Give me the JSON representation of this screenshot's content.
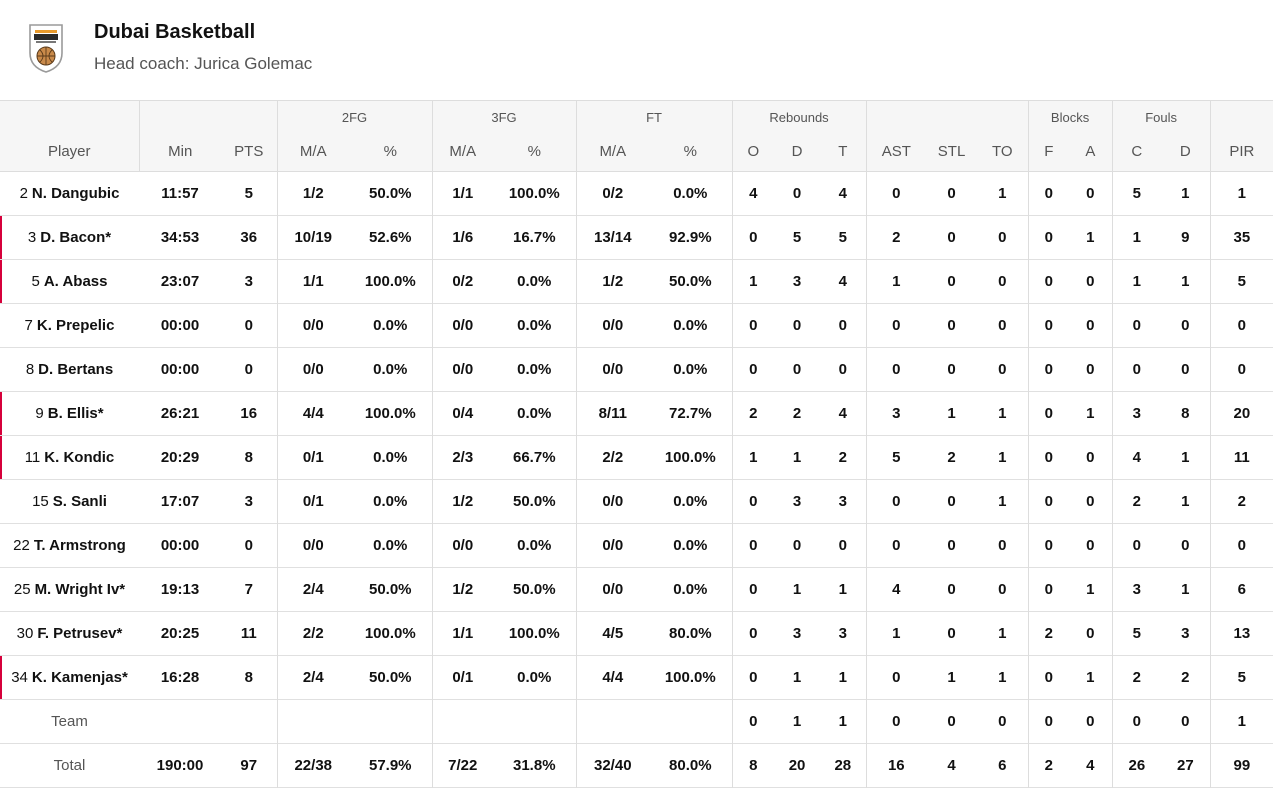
{
  "team": {
    "name": "Dubai Basketball",
    "coach": "Head coach: Jurica Golemac",
    "logo_icon": "dubai-basketball-logo-icon",
    "accent_color": "#d6003b"
  },
  "headers": {
    "groups": {
      "fg2": "2FG",
      "fg3": "3FG",
      "ft": "FT",
      "reb": "Rebounds",
      "blk": "Blocks",
      "fouls": "Fouls"
    },
    "player": "Player",
    "min": "Min",
    "pts": "PTS",
    "fg2_ma": "M/A",
    "fg2_pct": "%",
    "fg3_ma": "M/A",
    "fg3_pct": "%",
    "ft_ma": "M/A",
    "ft_pct": "%",
    "reb_o": "O",
    "reb_d": "D",
    "reb_t": "T",
    "ast": "AST",
    "stl": "STL",
    "to": "TO",
    "blk_f": "F",
    "blk_a": "A",
    "foul_c": "C",
    "foul_d": "D",
    "pir": "PIR"
  },
  "players": [
    {
      "num": "2",
      "name": "N. Dangubic",
      "starter": false,
      "min": "11:57",
      "pts": "5",
      "fg2": "1/2",
      "fg2p": "50.0%",
      "fg3": "1/1",
      "fg3p": "100.0%",
      "ft": "0/2",
      "ftp": "0.0%",
      "o": "4",
      "d": "0",
      "t": "4",
      "ast": "0",
      "stl": "0",
      "to": "1",
      "bf": "0",
      "ba": "0",
      "fc": "5",
      "fd": "1",
      "pir": "1"
    },
    {
      "num": "3",
      "name": "D. Bacon*",
      "starter": true,
      "min": "34:53",
      "pts": "36",
      "fg2": "10/19",
      "fg2p": "52.6%",
      "fg3": "1/6",
      "fg3p": "16.7%",
      "ft": "13/14",
      "ftp": "92.9%",
      "o": "0",
      "d": "5",
      "t": "5",
      "ast": "2",
      "stl": "0",
      "to": "0",
      "bf": "0",
      "ba": "1",
      "fc": "1",
      "fd": "9",
      "pir": "35"
    },
    {
      "num": "5",
      "name": "A. Abass",
      "starter": true,
      "min": "23:07",
      "pts": "3",
      "fg2": "1/1",
      "fg2p": "100.0%",
      "fg3": "0/2",
      "fg3p": "0.0%",
      "ft": "1/2",
      "ftp": "50.0%",
      "o": "1",
      "d": "3",
      "t": "4",
      "ast": "1",
      "stl": "0",
      "to": "0",
      "bf": "0",
      "ba": "0",
      "fc": "1",
      "fd": "1",
      "pir": "5"
    },
    {
      "num": "7",
      "name": "K. Prepelic",
      "starter": false,
      "min": "00:00",
      "pts": "0",
      "fg2": "0/0",
      "fg2p": "0.0%",
      "fg3": "0/0",
      "fg3p": "0.0%",
      "ft": "0/0",
      "ftp": "0.0%",
      "o": "0",
      "d": "0",
      "t": "0",
      "ast": "0",
      "stl": "0",
      "to": "0",
      "bf": "0",
      "ba": "0",
      "fc": "0",
      "fd": "0",
      "pir": "0"
    },
    {
      "num": "8",
      "name": "D. Bertans",
      "starter": false,
      "min": "00:00",
      "pts": "0",
      "fg2": "0/0",
      "fg2p": "0.0%",
      "fg3": "0/0",
      "fg3p": "0.0%",
      "ft": "0/0",
      "ftp": "0.0%",
      "o": "0",
      "d": "0",
      "t": "0",
      "ast": "0",
      "stl": "0",
      "to": "0",
      "bf": "0",
      "ba": "0",
      "fc": "0",
      "fd": "0",
      "pir": "0"
    },
    {
      "num": "9",
      "name": "B. Ellis*",
      "starter": true,
      "min": "26:21",
      "pts": "16",
      "fg2": "4/4",
      "fg2p": "100.0%",
      "fg3": "0/4",
      "fg3p": "0.0%",
      "ft": "8/11",
      "ftp": "72.7%",
      "o": "2",
      "d": "2",
      "t": "4",
      "ast": "3",
      "stl": "1",
      "to": "1",
      "bf": "0",
      "ba": "1",
      "fc": "3",
      "fd": "8",
      "pir": "20"
    },
    {
      "num": "11",
      "name": "K. Kondic",
      "starter": true,
      "min": "20:29",
      "pts": "8",
      "fg2": "0/1",
      "fg2p": "0.0%",
      "fg3": "2/3",
      "fg3p": "66.7%",
      "ft": "2/2",
      "ftp": "100.0%",
      "o": "1",
      "d": "1",
      "t": "2",
      "ast": "5",
      "stl": "2",
      "to": "1",
      "bf": "0",
      "ba": "0",
      "fc": "4",
      "fd": "1",
      "pir": "11"
    },
    {
      "num": "15",
      "name": "S. Sanli",
      "starter": false,
      "min": "17:07",
      "pts": "3",
      "fg2": "0/1",
      "fg2p": "0.0%",
      "fg3": "1/2",
      "fg3p": "50.0%",
      "ft": "0/0",
      "ftp": "0.0%",
      "o": "0",
      "d": "3",
      "t": "3",
      "ast": "0",
      "stl": "0",
      "to": "1",
      "bf": "0",
      "ba": "0",
      "fc": "2",
      "fd": "1",
      "pir": "2"
    },
    {
      "num": "22",
      "name": "T. Armstrong",
      "starter": false,
      "min": "00:00",
      "pts": "0",
      "fg2": "0/0",
      "fg2p": "0.0%",
      "fg3": "0/0",
      "fg3p": "0.0%",
      "ft": "0/0",
      "ftp": "0.0%",
      "o": "0",
      "d": "0",
      "t": "0",
      "ast": "0",
      "stl": "0",
      "to": "0",
      "bf": "0",
      "ba": "0",
      "fc": "0",
      "fd": "0",
      "pir": "0"
    },
    {
      "num": "25",
      "name": "M. Wright Iv*",
      "starter": false,
      "min": "19:13",
      "pts": "7",
      "fg2": "2/4",
      "fg2p": "50.0%",
      "fg3": "1/2",
      "fg3p": "50.0%",
      "ft": "0/0",
      "ftp": "0.0%",
      "o": "0",
      "d": "1",
      "t": "1",
      "ast": "4",
      "stl": "0",
      "to": "0",
      "bf": "0",
      "ba": "1",
      "fc": "3",
      "fd": "1",
      "pir": "6"
    },
    {
      "num": "30",
      "name": "F. Petrusev*",
      "starter": false,
      "min": "20:25",
      "pts": "11",
      "fg2": "2/2",
      "fg2p": "100.0%",
      "fg3": "1/1",
      "fg3p": "100.0%",
      "ft": "4/5",
      "ftp": "80.0%",
      "o": "0",
      "d": "3",
      "t": "3",
      "ast": "1",
      "stl": "0",
      "to": "1",
      "bf": "2",
      "ba": "0",
      "fc": "5",
      "fd": "3",
      "pir": "13"
    },
    {
      "num": "34",
      "name": "K. Kamenjas*",
      "starter": true,
      "min": "16:28",
      "pts": "8",
      "fg2": "2/4",
      "fg2p": "50.0%",
      "fg3": "0/1",
      "fg3p": "0.0%",
      "ft": "4/4",
      "ftp": "100.0%",
      "o": "0",
      "d": "1",
      "t": "1",
      "ast": "0",
      "stl": "1",
      "to": "1",
      "bf": "0",
      "ba": "1",
      "fc": "2",
      "fd": "2",
      "pir": "5"
    }
  ],
  "team_row": {
    "label": "Team",
    "min": "",
    "pts": "",
    "fg2": "",
    "fg2p": "",
    "fg3": "",
    "fg3p": "",
    "ft": "",
    "ftp": "",
    "o": "0",
    "d": "1",
    "t": "1",
    "ast": "0",
    "stl": "0",
    "to": "0",
    "bf": "0",
    "ba": "0",
    "fc": "0",
    "fd": "0",
    "pir": "1"
  },
  "total_row": {
    "label": "Total",
    "min": "190:00",
    "pts": "97",
    "fg2": "22/38",
    "fg2p": "57.9%",
    "fg3": "7/22",
    "fg3p": "31.8%",
    "ft": "32/40",
    "ftp": "80.0%",
    "o": "8",
    "d": "20",
    "t": "28",
    "ast": "16",
    "stl": "4",
    "to": "6",
    "bf": "2",
    "ba": "4",
    "fc": "26",
    "fd": "27",
    "pir": "99"
  }
}
